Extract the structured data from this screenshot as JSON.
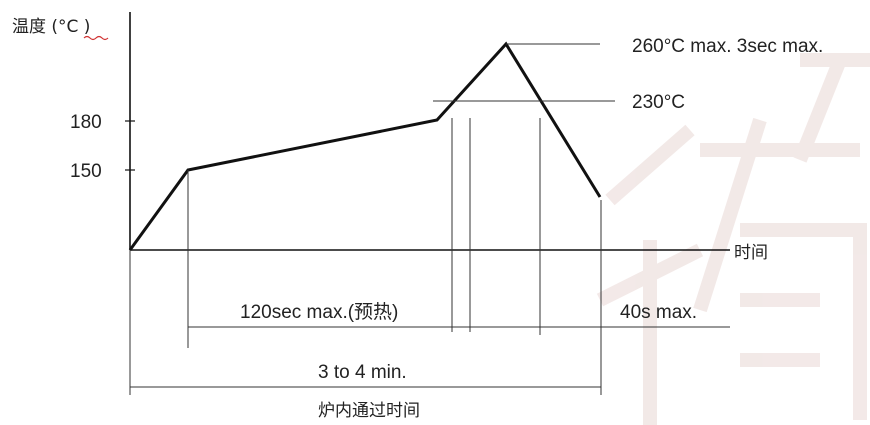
{
  "chart_data": {
    "type": "line",
    "title": "",
    "ylabel": "温度 (°C )",
    "xlabel": "时间",
    "yticks": [
      180,
      150
    ],
    "profile": [
      {
        "t": 0,
        "temp": 20
      },
      {
        "t": 1,
        "temp": 150
      },
      {
        "t": 5.5,
        "temp": 180
      },
      {
        "t": 6.2,
        "temp": 260
      },
      {
        "t": 8,
        "temp": 130
      }
    ],
    "annotations": {
      "peak": "260°C max. 3sec max.",
      "reflow": "230°C",
      "preheat": "120sec max.(预热)",
      "above_temp": "40s max.",
      "total": "3 to 4 min.",
      "total_label": "炉内通过时间"
    }
  },
  "colors": {
    "line": "#111111",
    "thin": "#333333",
    "watermark": "#f3e8e6"
  }
}
